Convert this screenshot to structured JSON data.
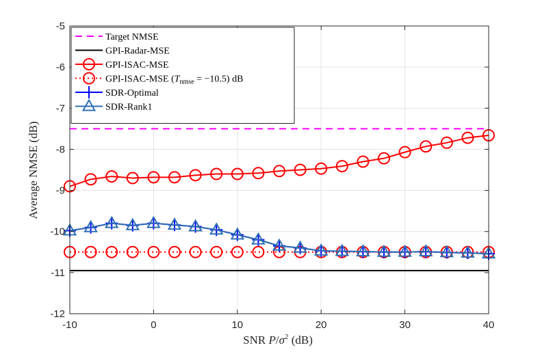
{
  "chart_data": {
    "type": "line",
    "xlabel": "SNR P/σ² (dB)",
    "ylabel": "Average NMSE (dB)",
    "xlim": [
      -10,
      40
    ],
    "ylim": [
      -12,
      -5
    ],
    "xticks": [
      -10,
      0,
      10,
      20,
      30,
      40
    ],
    "yticks": [
      -12,
      -11,
      -10,
      -9,
      -8,
      -7,
      -6,
      -5
    ],
    "grid": true,
    "legend_position": "top-left",
    "x": [
      -10,
      -7.5,
      -5,
      -2.5,
      0,
      2.5,
      5,
      7.5,
      10,
      12.5,
      15,
      17.5,
      20,
      22.5,
      25,
      27.5,
      30,
      32.5,
      35,
      37.5,
      40
    ],
    "series": [
      {
        "name": "Target NMSE",
        "color": "#ff00ff",
        "style": "dashed",
        "marker": "none",
        "values": [
          -7.5,
          -7.5,
          -7.5,
          -7.5,
          -7.5,
          -7.5,
          -7.5,
          -7.5,
          -7.5,
          -7.5,
          -7.5,
          -7.5,
          -7.5,
          -7.5,
          -7.5,
          -7.5,
          -7.5,
          -7.5,
          -7.5,
          -7.5,
          -7.5
        ]
      },
      {
        "name": "GPI-Radar-MSE",
        "color": "#000000",
        "style": "solid",
        "marker": "none",
        "values": [
          -10.95,
          -10.95,
          -10.95,
          -10.95,
          -10.95,
          -10.95,
          -10.95,
          -10.95,
          -10.95,
          -10.95,
          -10.95,
          -10.95,
          -10.95,
          -10.95,
          -10.95,
          -10.95,
          -10.95,
          -10.95,
          -10.95,
          -10.95,
          -10.95
        ]
      },
      {
        "name": "GPI-ISAC-MSE",
        "color": "#ff0000",
        "style": "solid",
        "marker": "circle",
        "values": [
          -8.9,
          -8.73,
          -8.66,
          -8.7,
          -8.68,
          -8.68,
          -8.63,
          -8.6,
          -8.6,
          -8.58,
          -8.53,
          -8.5,
          -8.47,
          -8.41,
          -8.3,
          -8.22,
          -8.07,
          -7.93,
          -7.84,
          -7.72,
          -7.66
        ]
      },
      {
        "name": "GPI-ISAC-MSE (T_nmse = −10.5) dB",
        "label_main": "GPI-ISAC-MSE (",
        "label_sym": "T",
        "label_sub": "nmse",
        "label_rest": " = −10.5) dB",
        "color": "#ff0000",
        "style": "dotted",
        "marker": "circle",
        "values": [
          -10.5,
          -10.5,
          -10.5,
          -10.5,
          -10.5,
          -10.5,
          -10.5,
          -10.5,
          -10.5,
          -10.5,
          -10.5,
          -10.5,
          -10.5,
          -10.5,
          -10.5,
          -10.5,
          -10.5,
          -10.5,
          -10.5,
          -10.5,
          -10.5
        ]
      },
      {
        "name": "SDR-Optimal",
        "color": "#0000ff",
        "style": "solid",
        "marker": "plus",
        "values": [
          -9.98,
          -9.9,
          -9.8,
          -9.85,
          -9.8,
          -9.84,
          -9.88,
          -9.96,
          -10.08,
          -10.2,
          -10.35,
          -10.4,
          -10.47,
          -10.48,
          -10.49,
          -10.5,
          -10.5,
          -10.49,
          -10.51,
          -10.52,
          -10.54
        ]
      },
      {
        "name": "SDR-Rank1",
        "color": "#2f6fb3",
        "style": "solid",
        "marker": "triangle",
        "values": [
          -9.98,
          -9.9,
          -9.8,
          -9.85,
          -9.8,
          -9.84,
          -9.88,
          -9.96,
          -10.08,
          -10.2,
          -10.35,
          -10.4,
          -10.47,
          -10.48,
          -10.49,
          -10.5,
          -10.5,
          -10.49,
          -10.51,
          -10.52,
          -10.54
        ]
      }
    ]
  }
}
